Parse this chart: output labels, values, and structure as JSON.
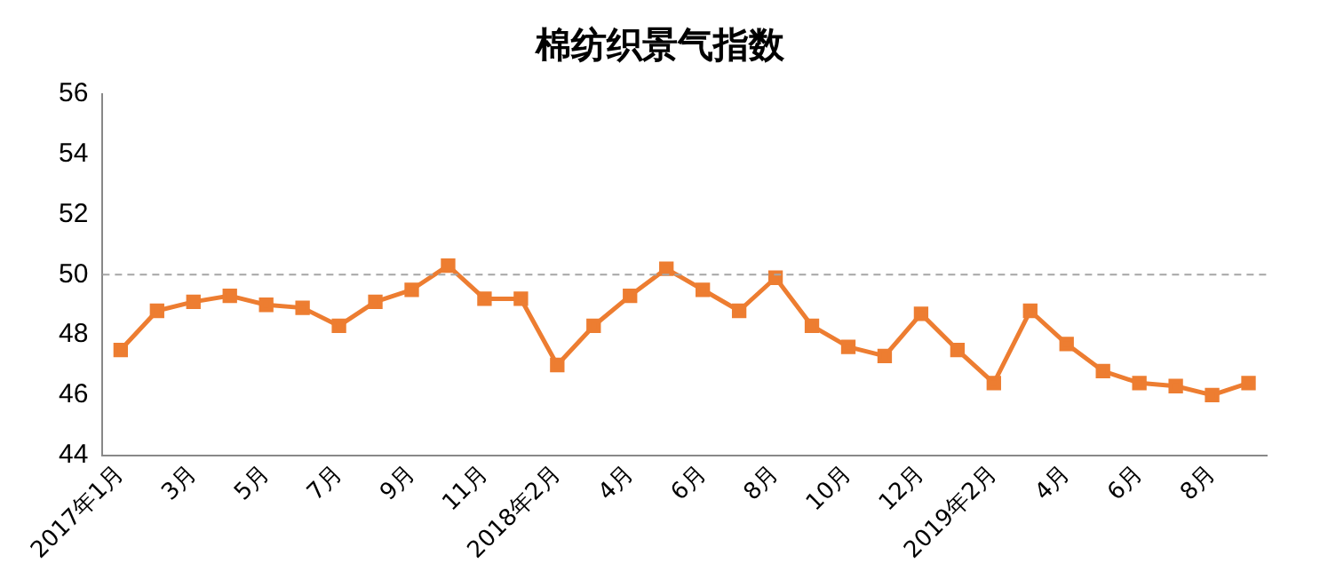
{
  "chart_data": {
    "type": "line",
    "title": "棉纺织景气指数",
    "categories": [
      "2017年1月",
      null,
      "3月",
      null,
      "5月",
      null,
      "7月",
      null,
      "9月",
      null,
      "11月",
      null,
      "2018年2月",
      null,
      "4月",
      null,
      "6月",
      null,
      "8月",
      null,
      "10月",
      null,
      "12月",
      null,
      "2019年2月",
      null,
      "4月",
      null,
      "6月",
      null,
      "8月",
      null
    ],
    "series": [
      {
        "color": "#ed7d31",
        "values": [
          47.5,
          48.8,
          49.1,
          49.3,
          49.0,
          48.9,
          48.3,
          49.1,
          49.5,
          50.3,
          49.2,
          49.2,
          47.0,
          48.3,
          49.3,
          50.2,
          49.5,
          48.8,
          49.9,
          48.3,
          47.6,
          47.3,
          48.7,
          47.5,
          46.4,
          48.8,
          47.7,
          46.8,
          46.4,
          46.3,
          46.0,
          46.4
        ]
      }
    ],
    "ylim": [
      44,
      56
    ],
    "yticks": [
      44,
      46,
      48,
      50,
      52,
      54,
      56
    ],
    "grid": false,
    "legend": false,
    "marker": "square",
    "line_style": "solid",
    "ref_lines": [
      {
        "axis": "y",
        "value": 50,
        "color": "#a6a6a6",
        "line_style": "dashed"
      }
    ]
  }
}
